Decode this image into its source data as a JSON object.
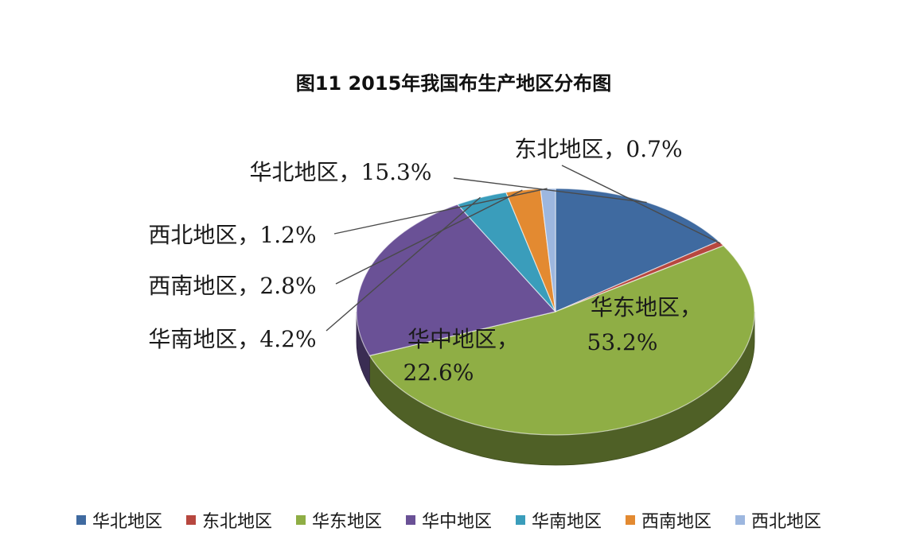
{
  "chart_data": {
    "type": "pie",
    "title": "图11   2015年我国布生产地区分布图",
    "slices": [
      {
        "name": "华北地区",
        "value": 15.3,
        "label": "华北地区，15.3%",
        "color": "#3F6AA0"
      },
      {
        "name": "东北地区",
        "value": 0.7,
        "label": "东北地区，0.7%",
        "color": "#B7473F"
      },
      {
        "name": "华东地区",
        "value": 53.2,
        "label_line1": "华东地区，",
        "label_line2": "53.2%",
        "color": "#8FAE45"
      },
      {
        "name": "华中地区",
        "value": 22.6,
        "label_line1": "华中地区，",
        "label_line2": "22.6%",
        "color": "#6A5196"
      },
      {
        "name": "华南地区",
        "value": 4.2,
        "label": "华南地区，4.2%",
        "color": "#3A9DBB"
      },
      {
        "name": "西南地区",
        "value": 2.8,
        "label": "西南地区，2.8%",
        "color": "#E38A31"
      },
      {
        "name": "西北地区",
        "value": 1.2,
        "label": "西北地区，1.2%",
        "color": "#9DB7DF"
      }
    ],
    "legend": {
      "position": "bottom",
      "entries": [
        "华北地区",
        "东北地区",
        "华东地区",
        "华中地区",
        "华南地区",
        "西南地区",
        "西北地区"
      ]
    }
  }
}
